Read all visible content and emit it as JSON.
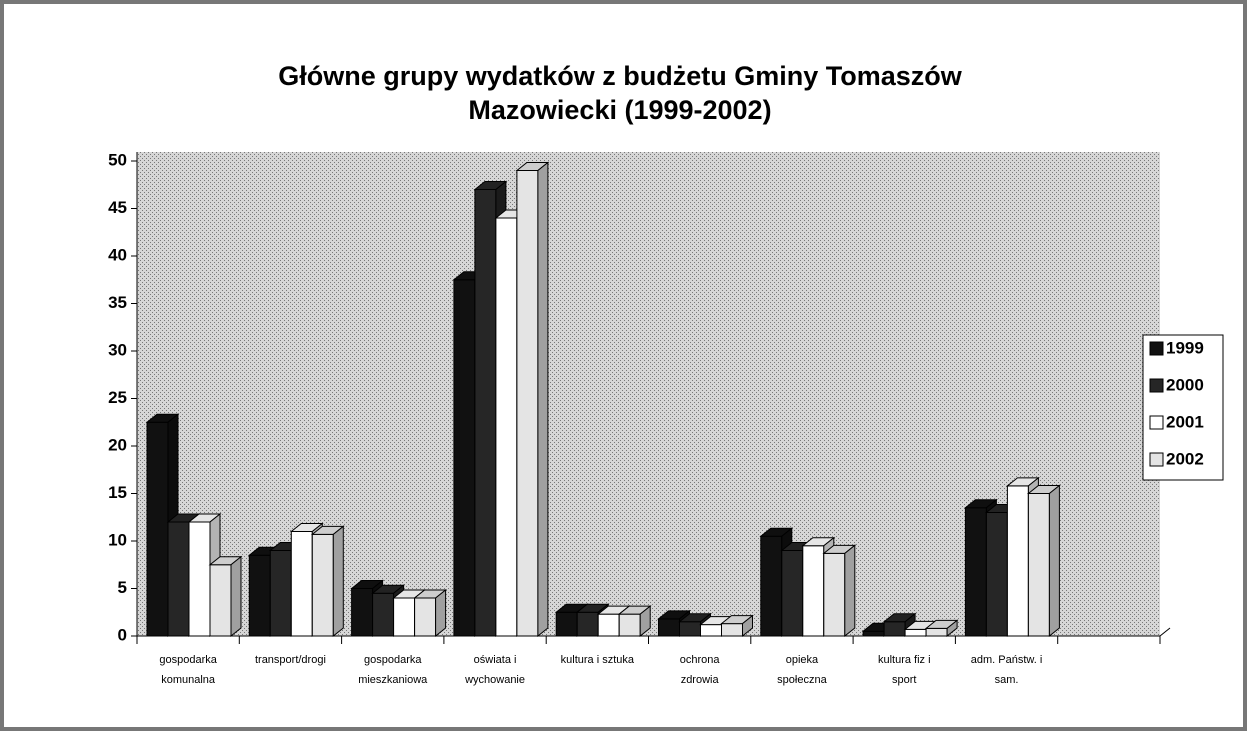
{
  "chart_data": {
    "type": "bar",
    "title": "Główne grupy wydatków z budżetu Gminy Tomaszów\nMazowiecki (1999-2002)",
    "categories": [
      "gospodarka\nkomunalna",
      "transport/drogi",
      "gospodarka\nmieszkaniowa",
      "oświata i\nwychowanie",
      "kultura i sztuka",
      "ochrona\nzdrowia",
      "opieka\nspołeczna",
      "kultura fiz i\nsport",
      "adm. Państw. i\nsam.",
      null
    ],
    "series": [
      {
        "name": "1999",
        "color": "#111111",
        "values": [
          22.5,
          8.5,
          5,
          37.5,
          2.5,
          1.8,
          10.5,
          0.5,
          13.5,
          null
        ]
      },
      {
        "name": "2000",
        "color": "#262626",
        "values": [
          12,
          9,
          4.5,
          47,
          2.5,
          1.5,
          9,
          1.5,
          13,
          null
        ]
      },
      {
        "name": "2001",
        "color": "#ffffff",
        "values": [
          12,
          11,
          4,
          44,
          2.3,
          1.2,
          9.5,
          0.7,
          15.8,
          null
        ]
      },
      {
        "name": "2002",
        "color": "#e4e4e4",
        "values": [
          7.5,
          10.7,
          4,
          49,
          2.3,
          1.3,
          8.7,
          0.8,
          15,
          null
        ]
      }
    ],
    "ylim": [
      0,
      50
    ],
    "yticks": [
      0,
      5,
      10,
      15,
      20,
      25,
      30,
      35,
      40,
      45,
      50
    ],
    "legend": "right"
  }
}
